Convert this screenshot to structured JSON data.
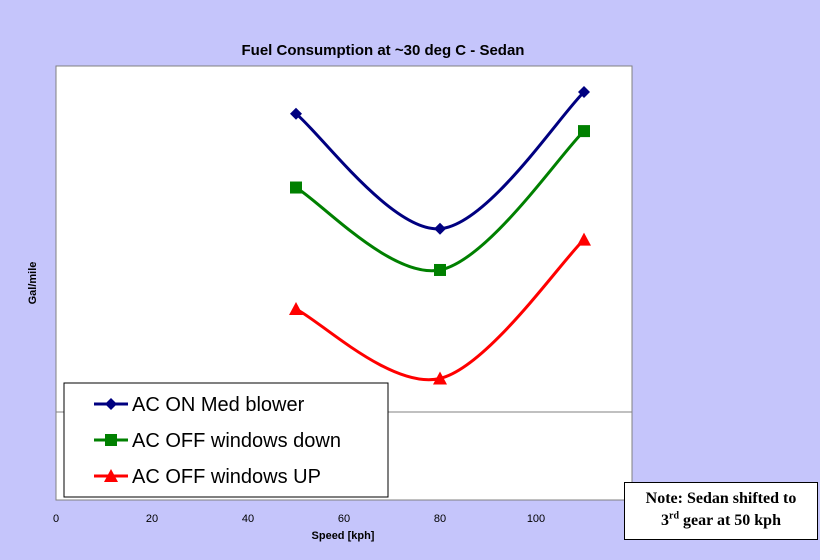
{
  "chart_data": {
    "type": "line",
    "title": "Fuel Consumption at ~30 deg C - Sedan",
    "xlabel": "Speed [kph]",
    "ylabel": "Gal/mile",
    "xlim": [
      0,
      120
    ],
    "ylim": [
      0,
      1
    ],
    "x_ticks": [
      "0",
      "20",
      "40",
      "60",
      "80",
      "100"
    ],
    "grid": "single horizontal gridline",
    "legend_position": "bottom-left",
    "series": [
      {
        "name": "AC ON Med blower",
        "color": "#000080",
        "marker": "diamond",
        "x": [
          50,
          80,
          110
        ],
        "y": [
          0.89,
          0.625,
          0.94
        ]
      },
      {
        "name": "AC OFF windows down",
        "color": "#008000",
        "marker": "square",
        "x": [
          50,
          80,
          110
        ],
        "y": [
          0.72,
          0.53,
          0.85
        ]
      },
      {
        "name": "AC OFF windows UP",
        "color": "#ff0000",
        "marker": "triangle",
        "x": [
          50,
          80,
          110
        ],
        "y": [
          0.44,
          0.28,
          0.6
        ]
      }
    ]
  },
  "note": {
    "line1": "Note: Sedan shifted to",
    "line2_num": "3",
    "line2_sup": "rd",
    "line2_rest": " gear at 50 kph"
  }
}
